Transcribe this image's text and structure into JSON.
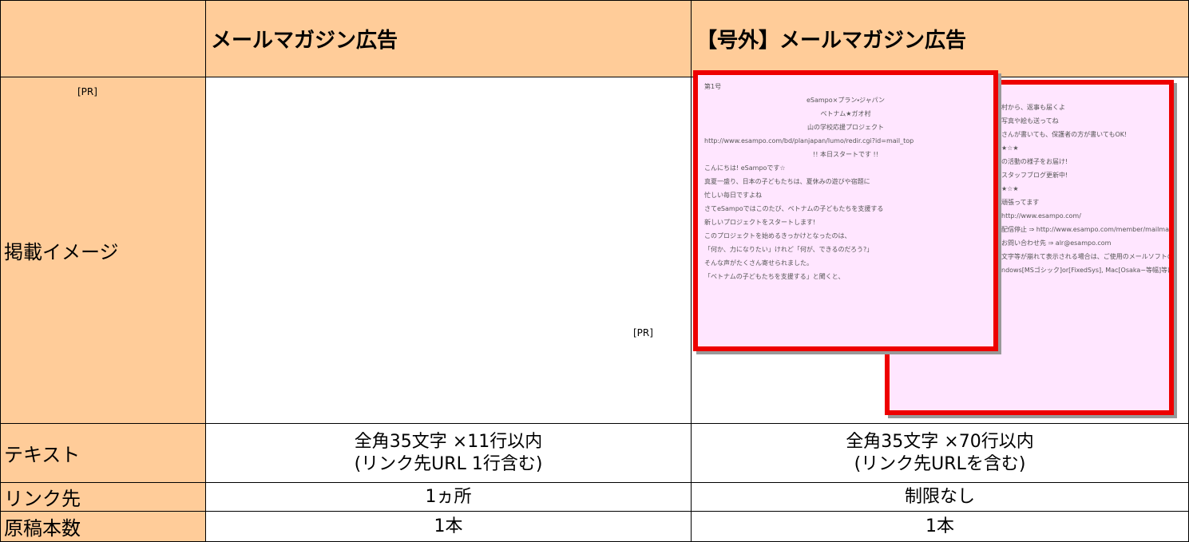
{
  "header": {
    "cells": [
      "",
      "メールマガジン広告",
      "【号外】メールマガジン広告"
    ]
  },
  "image_row": {
    "label": "掲載イメージ",
    "pr": [
      "[PR]",
      "[PR]"
    ],
    "mock_front": [
      "第1号",
      "eSampo×プラン・ジャパン",
      "ベトナム★ガオ村",
      "山の学校応援プロジェクト",
      "http://www.esampo.com/bd/planjapan/lumo/redir.cgi?id=mail_top",
      "!! 本日スタートです !!",
      "こんにちは! eSampoです☆",
      "真夏一盛り、日本の子どもたちは、夏休みの遊びや宿題に",
      "忙しい毎日ですよね",
      "さてeSampoではこのたび、ベトナムの子どもたちを支援する",
      "新しいプロジェクトをスタートします!",
      "このプロジェクトを始めるきっかけとなったのは、",
      "「何か、力になりたい」けれど「何が、できるのだろう?」",
      "そんな声がたくさん寄せられました。",
      "「ベトナムの子どもたちを支援する」と聞くと、"
    ],
    "mock_back": [
      "村から、返事も届くよ",
      "写真や絵も送ってね",
      "さんが書いても、保護者の方が書いてもOK!",
      "★☆★",
      "の活動の様子をお届け!",
      "スタッフブログ更新中!",
      "★☆★",
      "頑張ってます",
      "http://www.esampo.com/",
      "配信停止 ⇒ http://www.esampo.com/member/mailmagazine/",
      "お問い合わせ先 ⇒ alr@esampo.com",
      "文字等が崩れて表示される場合は、ご使用のメールソフトのフォント設定を",
      "ndows[MSゴシック]or[FixedSys], Mac[Osaka−等幅]等に設定してご覧下さい。"
    ]
  },
  "rows": [
    {
      "label": "テキスト",
      "cells": [
        [
          "全角35文字 ×11行以内",
          "(リンク先URL 1行含む)"
        ],
        [
          "全角35文字 ×70行以内",
          "(リンク先URLを含む)"
        ]
      ]
    },
    {
      "label": "リンク先",
      "cells": [
        [
          "1ヵ所"
        ],
        [
          "制限なし"
        ]
      ]
    },
    {
      "label": "原稿本数",
      "cells": [
        [
          "1本"
        ],
        [
          "1本"
        ]
      ]
    }
  ]
}
